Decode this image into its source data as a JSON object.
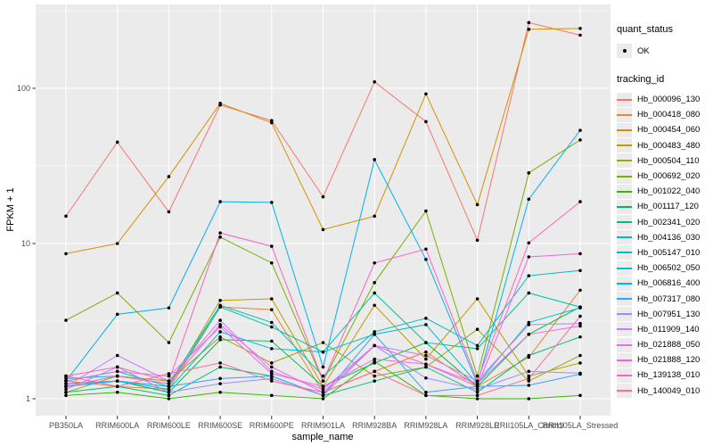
{
  "chart_data": {
    "type": "line",
    "title": "",
    "xlabel": "sample_name",
    "ylabel": "FPKM + 1",
    "y_scale": "log10",
    "y_ticks": [
      "1",
      "10",
      "100"
    ],
    "y_minor_ticks": [
      3.162,
      31.62,
      316.2
    ],
    "ylim": [
      0.93,
      370
    ],
    "grid": "on",
    "legend_position": "right",
    "panel_bg": "#EBEBEB",
    "grid_color": "#FFFFFF",
    "tick_text_color": "#4D4D4D",
    "axis_title_color": "#000000",
    "point_color": "#000000",
    "x_categories": [
      "PB350LA",
      "RRIM600LA",
      "RRIM600LE",
      "RRIM600SE",
      "RRIM600PE",
      "RRIM901LA",
      "RRIM928BA",
      "RRIM928LA",
      "RRIM928LE",
      "RRII105LA_Control",
      "RRII105LA_Stressed"
    ],
    "series": [
      {
        "name": "Hb_000096_130",
        "color": "#F8766D",
        "values": [
          15,
          45,
          16,
          78,
          62,
          20,
          110,
          61,
          10.5,
          265,
          220
        ]
      },
      {
        "name": "Hb_000418_080",
        "color": "#EA8331",
        "values": [
          1.3,
          1.2,
          1.15,
          3.9,
          3.75,
          1.1,
          1.5,
          2.0,
          1.2,
          1.85,
          5.0
        ]
      },
      {
        "name": "Hb_000454_060",
        "color": "#D89000",
        "values": [
          8.6,
          10,
          27,
          80,
          60,
          12.3,
          15,
          92,
          17.8,
          240,
          243
        ]
      },
      {
        "name": "Hb_000483_480",
        "color": "#C09B00",
        "values": [
          1.25,
          1.3,
          1.2,
          4.3,
          4.4,
          1.2,
          4.0,
          1.8,
          4.4,
          1.4,
          1.7
        ]
      },
      {
        "name": "Hb_000504_110",
        "color": "#A3A500",
        "values": [
          1.1,
          1.4,
          1.3,
          2.5,
          1.7,
          2.3,
          1.4,
          1.6,
          2.8,
          1.3,
          1.9
        ]
      },
      {
        "name": "Hb_000692_020",
        "color": "#7CAE00",
        "values": [
          3.2,
          4.8,
          2.3,
          11,
          7.5,
          1.3,
          5.6,
          16.2,
          1.4,
          28.5,
          46.5
        ]
      },
      {
        "name": "Hb_001022_040",
        "color": "#39B600",
        "values": [
          1.05,
          1.1,
          1.0,
          1.1,
          1.05,
          1.0,
          1.74,
          1.05,
          1.0,
          1.0,
          1.05
        ]
      },
      {
        "name": "Hb_001117_120",
        "color": "#00BB4E",
        "values": [
          1.2,
          1.3,
          1.1,
          2.4,
          2.35,
          1.2,
          1.7,
          2.3,
          1.2,
          2.6,
          3.9
        ]
      },
      {
        "name": "Hb_002341_020",
        "color": "#00BF7D",
        "values": [
          1.1,
          1.2,
          1.05,
          1.6,
          1.4,
          1.05,
          1.3,
          1.6,
          1.1,
          1.9,
          2.5
        ]
      },
      {
        "name": "Hb_004136_030",
        "color": "#00C1A3",
        "values": [
          1.3,
          1.5,
          1.2,
          3.9,
          2.9,
          2.0,
          4.8,
          2.3,
          2.1,
          4.8,
          3.9
        ]
      },
      {
        "name": "Hb_005147_010",
        "color": "#00BFC4",
        "values": [
          1.35,
          1.4,
          1.25,
          4.0,
          3.1,
          1.4,
          2.7,
          3.3,
          2.2,
          6.2,
          6.7
        ]
      },
      {
        "name": "Hb_006502_050",
        "color": "#00BBDA",
        "values": [
          1.25,
          1.3,
          1.15,
          2.7,
          2.1,
          2.0,
          2.6,
          3.0,
          1.25,
          3.1,
          3.85
        ]
      },
      {
        "name": "Hb_006816_400",
        "color": "#00B0F6",
        "values": [
          1.3,
          3.5,
          3.85,
          18.6,
          18.4,
          1.6,
          34.7,
          7.9,
          1.25,
          19.3,
          53.6
        ]
      },
      {
        "name": "Hb_007317_080",
        "color": "#35A2FF",
        "values": [
          1.2,
          1.3,
          1.2,
          1.35,
          1.4,
          1.05,
          2.6,
          1.1,
          1.2,
          1.22,
          1.44
        ]
      },
      {
        "name": "Hb_007951_130",
        "color": "#9590FF",
        "values": [
          1.15,
          1.6,
          1.1,
          1.25,
          1.35,
          1.05,
          2.2,
          1.36,
          1.15,
          1.5,
          1.46
        ]
      },
      {
        "name": "Hb_011909_140",
        "color": "#C77CFF",
        "values": [
          1.2,
          1.9,
          1.3,
          3.2,
          1.5,
          1.15,
          2.2,
          1.9,
          1.3,
          3.0,
          3.05
        ]
      },
      {
        "name": "Hb_021888_050",
        "color": "#E76BF3",
        "values": [
          1.3,
          1.5,
          1.4,
          2.9,
          1.45,
          1.2,
          1.8,
          1.67,
          1.25,
          2.6,
          2.94
        ]
      },
      {
        "name": "Hb_021888_120",
        "color": "#FA62DB",
        "values": [
          1.2,
          1.4,
          1.25,
          3.0,
          1.6,
          1.1,
          2.2,
          1.67,
          1.2,
          8.2,
          8.6
        ]
      },
      {
        "name": "Hb_139138_010",
        "color": "#FF62BC",
        "values": [
          1.4,
          1.6,
          1.3,
          11.7,
          9.6,
          1.3,
          7.5,
          9.2,
          1.3,
          10.1,
          18.6
        ]
      },
      {
        "name": "Hb_140049_010",
        "color": "#FF6A98",
        "values": [
          1.4,
          1.2,
          1.45,
          1.7,
          1.3,
          1.1,
          1.5,
          1.05,
          1.05,
          1.35,
          3.4
        ]
      }
    ]
  },
  "legend": {
    "quant_status": {
      "title": "quant_status",
      "items": [
        {
          "label": "OK",
          "marker": "black-point"
        }
      ]
    },
    "tracking_id": {
      "title": "tracking_id"
    }
  }
}
